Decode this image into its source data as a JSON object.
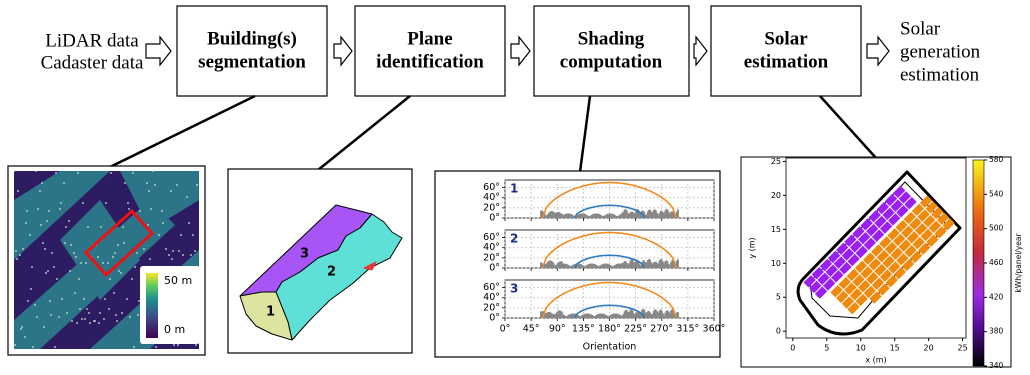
{
  "pipeline": {
    "inputs": [
      "LiDAR data",
      "Cadaster data"
    ],
    "steps": [
      {
        "lines": [
          "Building(s)",
          "segmentation"
        ]
      },
      {
        "lines": [
          "Plane",
          "identification"
        ]
      },
      {
        "lines": [
          "Shading",
          "computation"
        ]
      },
      {
        "lines": [
          "Solar",
          "estimation"
        ]
      }
    ],
    "output": [
      "Solar",
      "generation",
      "estimation"
    ]
  },
  "lidar": {
    "colorbar_labels": [
      "50 m",
      "0 m"
    ]
  },
  "planes": {
    "labels": [
      "3",
      "2",
      "1"
    ]
  },
  "shading": {
    "panels": [
      "1",
      "2",
      "3"
    ],
    "xlim": [
      0,
      360
    ],
    "ylim": [
      0,
      75
    ],
    "xticks": [
      {
        "value": 0,
        "label": "0°"
      },
      {
        "value": 45,
        "label": "45°"
      },
      {
        "value": 90,
        "label": "90°"
      },
      {
        "value": 135,
        "label": "135°"
      },
      {
        "value": 180,
        "label": "180°"
      },
      {
        "value": 225,
        "label": "225°"
      },
      {
        "value": 270,
        "label": "270°"
      },
      {
        "value": 315,
        "label": "315°"
      },
      {
        "value": 360,
        "label": "360°"
      }
    ],
    "yticks": [
      {
        "value": 0,
        "label": "0°"
      },
      {
        "value": 20,
        "label": "20°"
      },
      {
        "value": 40,
        "label": "40°"
      },
      {
        "value": 60,
        "label": "60°"
      }
    ],
    "xlabel": "Orientation",
    "curves": [
      {
        "color": "#f28a1e",
        "from": 65,
        "to": 295,
        "peak": 70
      },
      {
        "color": "#2f7bbf",
        "from": 120,
        "to": 240,
        "peak": 25
      }
    ]
  },
  "solar": {
    "xlim": [
      -1,
      25.5
    ],
    "ylim": [
      -1,
      25.5
    ],
    "xticks": [
      0,
      5,
      10,
      15,
      20,
      25
    ],
    "yticks": [
      0,
      5,
      10,
      15,
      20,
      25
    ],
    "xlabel": "x (m)",
    "ylabel": "y (m)",
    "colorbar": {
      "lim": [
        340,
        580
      ],
      "ticks": [
        340,
        380,
        420,
        460,
        500,
        540,
        580
      ],
      "label": "kWh/panel/year"
    }
  }
}
